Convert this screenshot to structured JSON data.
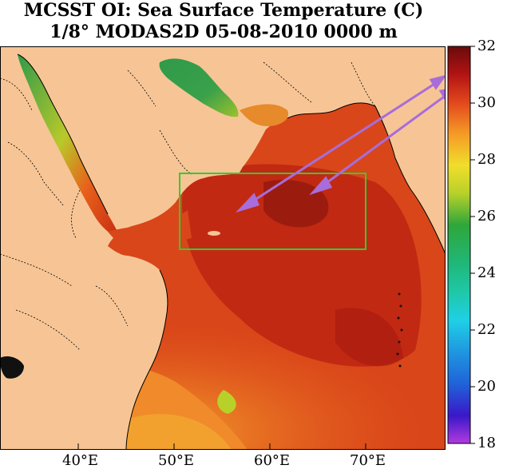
{
  "title": {
    "line1": "MCSST OI:  Sea Surface Temperature (C)",
    "line2": "1/8° MODAS2D 05-08-2010 0000 m"
  },
  "colorbar": {
    "min": 18,
    "max": 32,
    "tick_labels": [
      "32",
      "30",
      "28",
      "26",
      "24",
      "22",
      "20",
      "18"
    ],
    "colors": [
      "#9f2bd6",
      "#3a18c8",
      "#1f63d8",
      "#1fd0e6",
      "#1fb87a",
      "#2fa63a",
      "#b8d12a",
      "#f0de2b",
      "#f59a26",
      "#e2461c",
      "#b11313",
      "#6a0b0b"
    ]
  },
  "axis": {
    "lon_labels": [
      "40°E",
      "50°E",
      "60°E",
      "70°E"
    ]
  },
  "colors": {
    "land": "#f7c595",
    "sea_hot": "#c52b12",
    "sea_warm": "#e8611b",
    "sea_mid": "#f29a2b",
    "gulf_green": "#2f9a4a",
    "box": "#33cc33",
    "arrow": "#a86dd8"
  }
}
